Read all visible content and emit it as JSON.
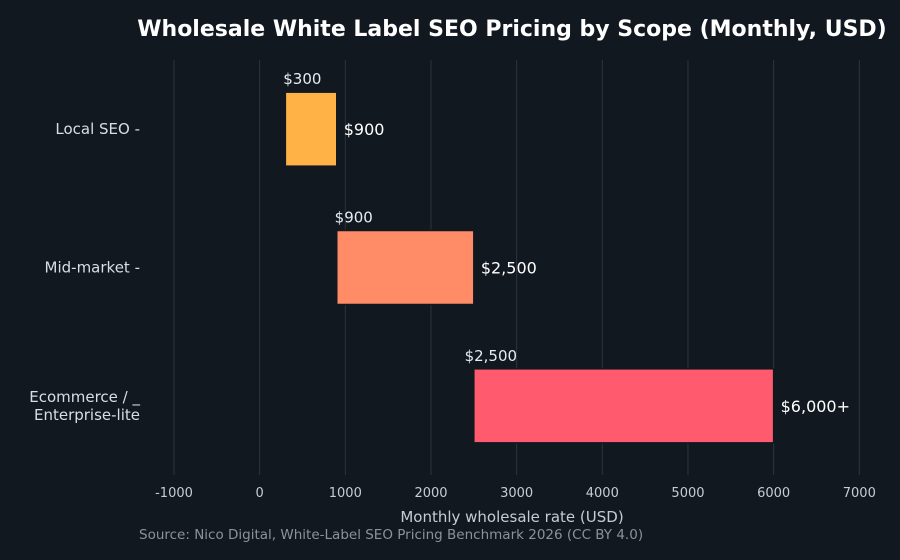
{
  "chart_data": {
    "type": "bar",
    "orientation": "horizontal-range",
    "title": "Wholesale White Label SEO Pricing by Scope (Monthly, USD)",
    "xlabel": "Monthly wholesale rate (USD)",
    "ylabel": "",
    "source": "Source: Nico Digital, White-Label SEO Pricing Benchmark 2026 (CC BY 4.0)",
    "xlim": [
      -1000,
      7000
    ],
    "xticks": [
      -1000,
      0,
      1000,
      2000,
      3000,
      4000,
      5000,
      6000,
      7000
    ],
    "grid": true,
    "categories": [
      {
        "label_lines": [
          "Local SEO -"
        ],
        "low": 300,
        "high": 900,
        "low_label": "$300",
        "high_label": "$900",
        "color": "#ffb347"
      },
      {
        "label_lines": [
          "Mid-market -"
        ],
        "low": 900,
        "high": 2500,
        "low_label": "$900",
        "high_label": "$2,500",
        "color": "#ff8c66"
      },
      {
        "label_lines": [
          "Ecommerce / _",
          "Enterprise-lite"
        ],
        "low": 2500,
        "high": 6000,
        "low_label": "$2,500",
        "high_label": "$6,000+",
        "color": "#ff5a6e"
      }
    ]
  }
}
